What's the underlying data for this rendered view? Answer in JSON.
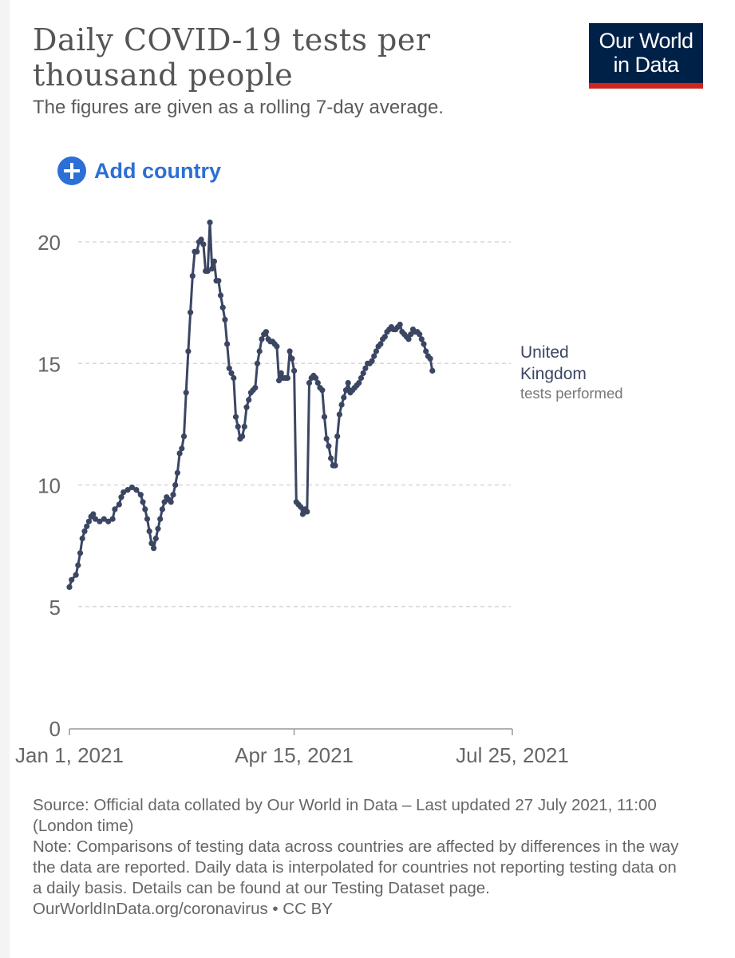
{
  "header": {
    "title": "Daily COVID-19 tests per thousand people",
    "subtitle": "The figures are given as a rolling 7-day average."
  },
  "logo": {
    "line1": "Our World",
    "line2": "in Data"
  },
  "controls": {
    "add_country_label": "Add country"
  },
  "footer": {
    "source": "Source: Official data collated by Our World in Data – Last updated 27 July 2021, 11:00 (London time)",
    "note": "Note: Comparisons of testing data across countries are affected by differences in the way the data are reported. Daily data is interpolated for countries not reporting testing data on a daily basis. Details can be found at our Testing Dataset page.",
    "link": "OurWorldInData.org/coronavirus",
    "license": "• CC BY"
  },
  "colors": {
    "line": "#3b4663",
    "brand_bg": "#002147",
    "brand_accent": "#ce261e",
    "link": "#2c6fd6",
    "grid": "#d8d8d8"
  },
  "chart_data": {
    "type": "line",
    "title": "Daily COVID-19 tests per thousand people",
    "xlabel": "",
    "ylabel": "",
    "x_tick_labels": [
      "Jan 1, 2021",
      "Apr 15, 2021",
      "Jul 25, 2021"
    ],
    "y_ticks": [
      0,
      5,
      10,
      15,
      20
    ],
    "ylim": [
      0,
      20.8
    ],
    "xlim": [
      "2021-01-01",
      "2021-07-25"
    ],
    "grid": "horizontal dashed",
    "series": [
      {
        "name": "United Kingdom",
        "label_sub": "tests performed",
        "points": [
          [
            "2021-01-01",
            5.8
          ],
          [
            "2021-01-02",
            6.1
          ],
          [
            "2021-01-04",
            6.3
          ],
          [
            "2021-01-05",
            6.7
          ],
          [
            "2021-01-06",
            7.2
          ],
          [
            "2021-01-07",
            7.8
          ],
          [
            "2021-01-08",
            8.1
          ],
          [
            "2021-01-09",
            8.3
          ],
          [
            "2021-01-10",
            8.5
          ],
          [
            "2021-01-11",
            8.7
          ],
          [
            "2021-01-12",
            8.8
          ],
          [
            "2021-01-13",
            8.6
          ],
          [
            "2021-01-15",
            8.5
          ],
          [
            "2021-01-17",
            8.6
          ],
          [
            "2021-01-19",
            8.5
          ],
          [
            "2021-01-21",
            8.6
          ],
          [
            "2021-01-22",
            9.0
          ],
          [
            "2021-01-24",
            9.2
          ],
          [
            "2021-01-25",
            9.5
          ],
          [
            "2021-01-26",
            9.7
          ],
          [
            "2021-01-28",
            9.8
          ],
          [
            "2021-01-30",
            9.9
          ],
          [
            "2021-02-01",
            9.8
          ],
          [
            "2021-02-03",
            9.6
          ],
          [
            "2021-02-04",
            9.3
          ],
          [
            "2021-02-05",
            9.0
          ],
          [
            "2021-02-06",
            8.6
          ],
          [
            "2021-02-07",
            8.1
          ],
          [
            "2021-02-08",
            7.6
          ],
          [
            "2021-02-09",
            7.4
          ],
          [
            "2021-02-10",
            7.8
          ],
          [
            "2021-02-11",
            8.2
          ],
          [
            "2021-02-12",
            8.6
          ],
          [
            "2021-02-13",
            9.0
          ],
          [
            "2021-02-14",
            9.3
          ],
          [
            "2021-02-15",
            9.5
          ],
          [
            "2021-02-16",
            9.4
          ],
          [
            "2021-02-17",
            9.3
          ],
          [
            "2021-02-18",
            9.6
          ],
          [
            "2021-02-19",
            10.0
          ],
          [
            "2021-02-20",
            10.5
          ],
          [
            "2021-02-21",
            11.3
          ],
          [
            "2021-02-22",
            11.5
          ],
          [
            "2021-02-23",
            12.0
          ],
          [
            "2021-02-24",
            13.8
          ],
          [
            "2021-02-25",
            15.5
          ],
          [
            "2021-02-26",
            17.1
          ],
          [
            "2021-02-27",
            18.6
          ],
          [
            "2021-02-28",
            19.6
          ],
          [
            "2021-03-01",
            19.6
          ],
          [
            "2021-03-02",
            20.0
          ],
          [
            "2021-03-03",
            20.1
          ],
          [
            "2021-03-04",
            19.9
          ],
          [
            "2021-03-05",
            18.8
          ],
          [
            "2021-03-06",
            18.8
          ],
          [
            "2021-03-07",
            20.8
          ],
          [
            "2021-03-08",
            18.9
          ],
          [
            "2021-03-09",
            19.2
          ],
          [
            "2021-03-10",
            18.4
          ],
          [
            "2021-03-11",
            18.4
          ],
          [
            "2021-03-12",
            17.8
          ],
          [
            "2021-03-13",
            17.3
          ],
          [
            "2021-03-14",
            16.8
          ],
          [
            "2021-03-15",
            15.8
          ],
          [
            "2021-03-16",
            14.8
          ],
          [
            "2021-03-17",
            14.6
          ],
          [
            "2021-03-18",
            14.4
          ],
          [
            "2021-03-19",
            12.8
          ],
          [
            "2021-03-20",
            12.4
          ],
          [
            "2021-03-21",
            11.9
          ],
          [
            "2021-03-22",
            12.0
          ],
          [
            "2021-03-23",
            12.4
          ],
          [
            "2021-03-24",
            13.2
          ],
          [
            "2021-03-25",
            13.5
          ],
          [
            "2021-03-26",
            13.8
          ],
          [
            "2021-03-27",
            13.9
          ],
          [
            "2021-03-28",
            14.0
          ],
          [
            "2021-03-29",
            15.0
          ],
          [
            "2021-03-30",
            15.5
          ],
          [
            "2021-03-31",
            16.0
          ],
          [
            "2021-04-01",
            16.2
          ],
          [
            "2021-04-02",
            16.3
          ],
          [
            "2021-04-03",
            16.0
          ],
          [
            "2021-04-04",
            15.9
          ],
          [
            "2021-04-05",
            15.9
          ],
          [
            "2021-04-06",
            15.8
          ],
          [
            "2021-04-07",
            15.7
          ],
          [
            "2021-04-08",
            14.3
          ],
          [
            "2021-04-09",
            14.6
          ],
          [
            "2021-04-10",
            14.4
          ],
          [
            "2021-04-11",
            14.4
          ],
          [
            "2021-04-12",
            14.4
          ],
          [
            "2021-04-13",
            15.5
          ],
          [
            "2021-04-14",
            15.2
          ],
          [
            "2021-04-15",
            14.7
          ],
          [
            "2021-04-16",
            9.3
          ],
          [
            "2021-04-17",
            9.2
          ],
          [
            "2021-04-18",
            9.1
          ],
          [
            "2021-04-19",
            8.8
          ],
          [
            "2021-04-20",
            9.0
          ],
          [
            "2021-04-21",
            8.9
          ],
          [
            "2021-04-22",
            14.2
          ],
          [
            "2021-04-23",
            14.4
          ],
          [
            "2021-04-24",
            14.5
          ],
          [
            "2021-04-25",
            14.4
          ],
          [
            "2021-04-26",
            14.2
          ],
          [
            "2021-04-27",
            14.0
          ],
          [
            "2021-04-28",
            13.9
          ],
          [
            "2021-04-29",
            12.8
          ],
          [
            "2021-04-30",
            11.9
          ],
          [
            "2021-05-01",
            11.6
          ],
          [
            "2021-05-02",
            11.1
          ],
          [
            "2021-05-03",
            10.8
          ],
          [
            "2021-05-04",
            10.8
          ],
          [
            "2021-05-05",
            12.0
          ],
          [
            "2021-05-06",
            12.9
          ],
          [
            "2021-05-07",
            13.3
          ],
          [
            "2021-05-08",
            13.6
          ],
          [
            "2021-05-09",
            13.9
          ],
          [
            "2021-05-10",
            14.2
          ],
          [
            "2021-05-11",
            13.8
          ],
          [
            "2021-05-12",
            13.9
          ],
          [
            "2021-05-13",
            14.0
          ],
          [
            "2021-05-14",
            14.1
          ],
          [
            "2021-05-15",
            14.2
          ],
          [
            "2021-05-16",
            14.4
          ],
          [
            "2021-05-17",
            14.6
          ],
          [
            "2021-05-18",
            14.8
          ],
          [
            "2021-05-19",
            15.0
          ],
          [
            "2021-05-20",
            15.0
          ],
          [
            "2021-05-21",
            15.1
          ],
          [
            "2021-05-22",
            15.3
          ],
          [
            "2021-05-23",
            15.5
          ],
          [
            "2021-05-24",
            15.7
          ],
          [
            "2021-05-25",
            15.8
          ],
          [
            "2021-05-26",
            16.0
          ],
          [
            "2021-05-27",
            16.1
          ],
          [
            "2021-05-28",
            16.3
          ],
          [
            "2021-05-29",
            16.4
          ],
          [
            "2021-05-30",
            16.5
          ],
          [
            "2021-05-31",
            16.4
          ],
          [
            "2021-06-01",
            16.4
          ],
          [
            "2021-06-02",
            16.5
          ],
          [
            "2021-06-03",
            16.6
          ],
          [
            "2021-06-04",
            16.3
          ],
          [
            "2021-06-05",
            16.2
          ],
          [
            "2021-06-06",
            16.1
          ],
          [
            "2021-06-07",
            16.0
          ],
          [
            "2021-06-08",
            16.2
          ],
          [
            "2021-06-09",
            16.4
          ],
          [
            "2021-06-10",
            16.3
          ],
          [
            "2021-06-11",
            16.3
          ],
          [
            "2021-06-12",
            16.2
          ],
          [
            "2021-06-13",
            16.0
          ],
          [
            "2021-06-14",
            15.8
          ],
          [
            "2021-06-15",
            15.5
          ],
          [
            "2021-06-16",
            15.3
          ],
          [
            "2021-06-17",
            15.2
          ],
          [
            "2021-06-18",
            14.7
          ]
        ]
      }
    ]
  }
}
